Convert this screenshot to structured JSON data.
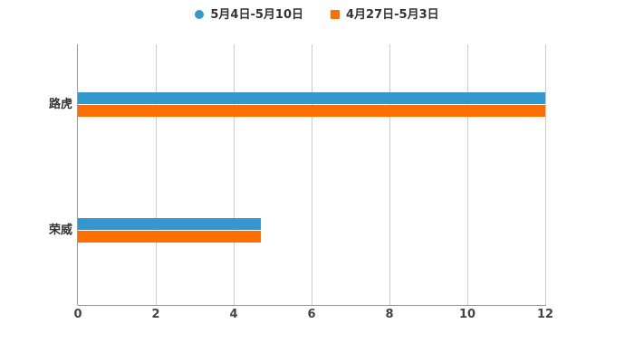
{
  "chart_data": {
    "type": "bar",
    "orientation": "horizontal",
    "title": "",
    "xlabel": "",
    "ylabel": "",
    "categories": [
      "路虎",
      "荣威"
    ],
    "series": [
      {
        "name": "5月4日-5月10日",
        "color": "#3398cc",
        "marker": "circle",
        "values": [
          12,
          4.7
        ]
      },
      {
        "name": "4月27日-5月3日",
        "color": "#ff6e00",
        "marker": "square",
        "values": [
          12,
          4.7
        ]
      }
    ],
    "xlim": [
      0,
      12
    ],
    "xticks": [
      0,
      2,
      4,
      6,
      8,
      10,
      12
    ],
    "grid": true,
    "gridline_color": "#cccccc",
    "axis_line_color": "#999999",
    "legend_position": "top",
    "background_color": "#ffffff"
  }
}
